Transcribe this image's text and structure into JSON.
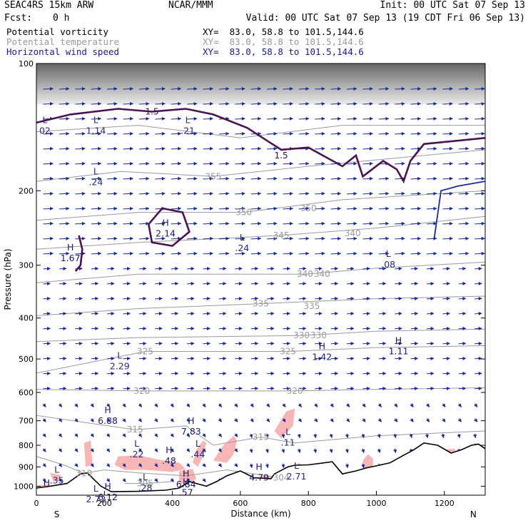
{
  "header": {
    "model": "SEAC4RS 15km ARW",
    "org": "NCAR/MMM",
    "init": "Init: 00 UTC Sat 07 Sep 13",
    "fcst_label": "Fcst:",
    "fcst_value": "0 h",
    "valid": "Valid: 00 UTC Sat 07 Sep 13 (19 CDT Fri 06 Sep 13)",
    "vars": [
      {
        "name": "Potential vorticity",
        "xy": "XY=  83.0, 58.8 to 101.5,144.6",
        "color": "#000000"
      },
      {
        "name": "Potential temperature",
        "xy": "XY=  83.0, 58.8 to 101.5,144.6",
        "color": "#9a9a9a"
      },
      {
        "name": "Horizontal wind speed",
        "xy": "XY=  83.0, 58.8 to 101.5,144.6",
        "color": "#1a1a8a"
      }
    ]
  },
  "colors": {
    "terrain": "#000000",
    "theta": "#9a9a9a",
    "pv": "#4a1450",
    "wind": "#1a2a9a",
    "shade": "#f7b5b5",
    "jet": "#1a2a9a"
  },
  "chart_data": {
    "type": "cross-section",
    "xlabel": "Distance (km)",
    "ylabel": "Pressure (hPa)",
    "xlim": [
      0,
      1320
    ],
    "ylim": [
      1050,
      100
    ],
    "y_scale": "log",
    "x_ticks": [
      "0",
      "200",
      "400",
      "600",
      "800",
      "1000",
      "1200"
    ],
    "y_ticks": [
      "100",
      "200",
      "300",
      "400",
      "500",
      "600",
      "700",
      "800",
      "900",
      "1000"
    ],
    "left_end_label": "S",
    "right_end_label": "N",
    "theta_contours": [
      {
        "label": "355",
        "x": 520,
        "p": 185
      },
      {
        "label": "350",
        "x": 610,
        "p": 225
      },
      {
        "label": "350",
        "x": 800,
        "p": 220
      },
      {
        "label": "345",
        "x": 720,
        "p": 255
      },
      {
        "label": "340",
        "x": 930,
        "p": 252
      },
      {
        "label": "340",
        "x": 790,
        "p": 315
      },
      {
        "label": "340",
        "x": 840,
        "p": 315
      },
      {
        "label": "335",
        "x": 660,
        "p": 370
      },
      {
        "label": "335",
        "x": 810,
        "p": 375
      },
      {
        "label": "330",
        "x": 780,
        "p": 440
      },
      {
        "label": "330",
        "x": 830,
        "p": 440
      },
      {
        "label": "325",
        "x": 320,
        "p": 480
      },
      {
        "label": "325",
        "x": 740,
        "p": 480
      },
      {
        "label": "320",
        "x": 310,
        "p": 595
      },
      {
        "label": "320",
        "x": 760,
        "p": 595
      },
      {
        "label": "315",
        "x": 290,
        "p": 735
      },
      {
        "label": "315",
        "x": 660,
        "p": 765
      },
      {
        "label": "310",
        "x": 140,
        "p": 932
      },
      {
        "label": "305",
        "x": 320,
        "p": 985
      },
      {
        "label": "304",
        "x": 720,
        "p": 955
      }
    ],
    "pv_contours": [
      {
        "label": "1.5",
        "x": 340,
        "p": 130
      },
      {
        "label": "1.5",
        "x": 720,
        "p": 165
      }
    ],
    "extrema": [
      {
        "type": "L",
        "value": "02",
        "x": 25,
        "p": 140
      },
      {
        "type": "L",
        "value": "1.14",
        "x": 175,
        "p": 140
      },
      {
        "type": "L",
        "value": ".21",
        "x": 445,
        "p": 140
      },
      {
        "type": "L",
        "value": ".24",
        "x": 175,
        "p": 185
      },
      {
        "type": "H",
        "value": "2.14",
        "x": 380,
        "p": 245
      },
      {
        "type": "L",
        "value": ".24",
        "x": 605,
        "p": 265
      },
      {
        "type": "H",
        "value": "1.67",
        "x": 100,
        "p": 280
      },
      {
        "type": "L",
        "value": ".08",
        "x": 1035,
        "p": 290
      },
      {
        "type": "H",
        "value": "1.42",
        "x": 840,
        "p": 480
      },
      {
        "type": "H",
        "value": "1.11",
        "x": 1065,
        "p": 465
      },
      {
        "type": "L",
        "value": "2.29",
        "x": 245,
        "p": 505
      },
      {
        "type": "H",
        "value": "6.88",
        "x": 210,
        "p": 680
      },
      {
        "type": "H",
        "value": "7.83",
        "x": 455,
        "p": 720
      },
      {
        "type": "L",
        "value": ".11",
        "x": 740,
        "p": 765
      },
      {
        "type": "L",
        "value": ".22",
        "x": 295,
        "p": 815
      },
      {
        "type": "H",
        "value": ".48",
        "x": 390,
        "p": 845
      },
      {
        "type": "L",
        "value": ".44",
        "x": 475,
        "p": 815
      },
      {
        "type": "H",
        "value": "4.79",
        "x": 655,
        "p": 925
      },
      {
        "type": "L",
        "value": "2.71",
        "x": 765,
        "p": 920
      },
      {
        "type": "L",
        "value": ".35",
        "x": 60,
        "p": 940
      },
      {
        "type": "L",
        "value": ".28",
        "x": 320,
        "p": 980
      },
      {
        "type": "H",
        "value": "6.84",
        "x": 440,
        "p": 960
      },
      {
        "type": "H",
        "value": ".57",
        "x": 440,
        "p": 1005
      },
      {
        "type": "H",
        "value": "6.12",
        "x": 210,
        "p": 1030
      },
      {
        "type": "L",
        "value": "2.72",
        "x": 175,
        "p": 1042
      },
      {
        "type": "H",
        "value": "",
        "x": 30,
        "p": 1010
      }
    ]
  }
}
